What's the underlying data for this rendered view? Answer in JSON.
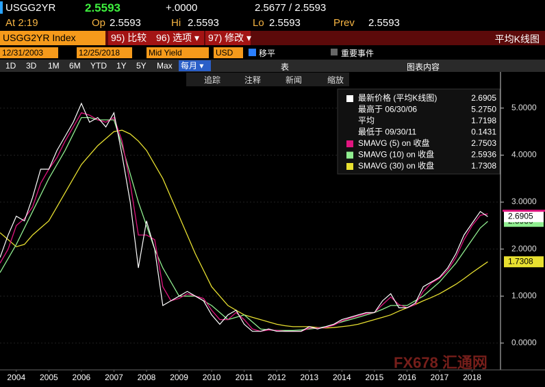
{
  "header": {
    "ticker": "USGG2YR",
    "last": "2.5593",
    "change": "+.0000",
    "bid_ask": "2.5677 / 2.5593",
    "time": "At 2:19",
    "open_label": "Op",
    "open": "2.5593",
    "high_label": "Hi",
    "high": "2.5593",
    "low_label": "Lo",
    "low": "2.5593",
    "prev_label": "Prev",
    "prev": "2.5593"
  },
  "toolbar": {
    "security": "USGG2YR Index",
    "buttons": [
      "95) 比较",
      "96) 选项 ▾",
      "97) 修改 ▾"
    ],
    "chart_style": "平均K线图",
    "start_date": "12/31/2003",
    "end_date": "12/25/2018",
    "field": "Mid Yield",
    "currency": "USD",
    "option": "移平",
    "events": "重要事件",
    "periods": [
      "1D",
      "3D",
      "1M",
      "6M",
      "YTD",
      "1Y",
      "5Y",
      "Max"
    ],
    "frequency": "每月 ▾",
    "table": "表",
    "chart_content": "图表内容",
    "tools": [
      "追踪",
      "注释",
      "新闻",
      "缩放"
    ]
  },
  "watermark": "FX678 汇通网",
  "chart_data": {
    "type": "line",
    "x": [
      2004,
      2004.25,
      2004.5,
      2004.75,
      2005,
      2005.25,
      2005.5,
      2005.75,
      2006,
      2006.25,
      2006.5,
      2006.75,
      2007,
      2007.25,
      2007.5,
      2007.75,
      2008,
      2008.25,
      2008.5,
      2008.75,
      2009,
      2009.25,
      2009.5,
      2009.75,
      2010,
      2010.25,
      2010.5,
      2010.75,
      2011,
      2011.25,
      2011.5,
      2011.75,
      2012,
      2012.25,
      2012.5,
      2012.75,
      2013,
      2013.25,
      2013.5,
      2013.75,
      2014,
      2014.25,
      2014.5,
      2014.75,
      2015,
      2015.25,
      2015.5,
      2015.75,
      2016,
      2016.25,
      2016.5,
      2016.75,
      2017,
      2017.25,
      2017.5,
      2017.75,
      2018,
      2018.25,
      2018.5,
      2018.75,
      2018.98
    ],
    "series": [
      {
        "name": "最新价格 (平均K线图)",
        "color": "#ffffff",
        "values": [
          1.82,
          2.3,
          2.7,
          2.6,
          3.1,
          3.7,
          3.7,
          4.1,
          4.4,
          4.7,
          5.1,
          4.7,
          4.8,
          4.6,
          4.9,
          4.0,
          3.0,
          1.6,
          2.6,
          2.0,
          0.8,
          0.9,
          1.0,
          1.1,
          1.0,
          0.9,
          0.6,
          0.4,
          0.6,
          0.7,
          0.4,
          0.25,
          0.25,
          0.3,
          0.25,
          0.25,
          0.25,
          0.25,
          0.35,
          0.3,
          0.35,
          0.4,
          0.5,
          0.55,
          0.6,
          0.65,
          0.65,
          0.9,
          1.05,
          0.75,
          0.75,
          0.85,
          1.2,
          1.3,
          1.4,
          1.6,
          1.9,
          2.3,
          2.55,
          2.8,
          2.69
        ]
      },
      {
        "name": "SMAVG (5)  on 收盘",
        "color": "#e0157f",
        "values": [
          1.7,
          2.0,
          2.5,
          2.65,
          2.9,
          3.4,
          3.7,
          3.95,
          4.3,
          4.6,
          4.9,
          4.85,
          4.75,
          4.7,
          4.8,
          4.3,
          3.4,
          2.3,
          2.3,
          2.2,
          1.2,
          0.9,
          0.95,
          1.05,
          1.0,
          0.95,
          0.7,
          0.5,
          0.5,
          0.65,
          0.5,
          0.3,
          0.25,
          0.28,
          0.27,
          0.25,
          0.25,
          0.25,
          0.32,
          0.32,
          0.33,
          0.38,
          0.47,
          0.53,
          0.58,
          0.63,
          0.65,
          0.82,
          0.98,
          0.82,
          0.75,
          0.82,
          1.1,
          1.28,
          1.38,
          1.55,
          1.82,
          2.2,
          2.5,
          2.72,
          2.75
        ]
      },
      {
        "name": "SMAVG (10)  on 收盘",
        "color": "#90ee90",
        "values": [
          1.5,
          1.8,
          2.1,
          2.45,
          2.8,
          3.15,
          3.5,
          3.8,
          4.1,
          4.45,
          4.8,
          4.8,
          4.75,
          4.75,
          4.75,
          4.2,
          3.6,
          3.0,
          2.5,
          2.0,
          1.6,
          1.3,
          1.0,
          1.0,
          1.0,
          0.9,
          0.8,
          0.65,
          0.5,
          0.55,
          0.6,
          0.45,
          0.3,
          0.28,
          0.27,
          0.27,
          0.27,
          0.28,
          0.3,
          0.32,
          0.35,
          0.4,
          0.45,
          0.5,
          0.55,
          0.6,
          0.65,
          0.72,
          0.8,
          0.8,
          0.8,
          0.9,
          1.0,
          1.15,
          1.3,
          1.5,
          1.7,
          1.95,
          2.2,
          2.45,
          2.59
        ]
      },
      {
        "name": "SMAVG (30)  on 收盘",
        "color": "#e8e030",
        "values": [
          2.35,
          2.2,
          2.05,
          2.1,
          2.3,
          2.45,
          2.6,
          2.9,
          3.2,
          3.5,
          3.8,
          4.0,
          4.2,
          4.35,
          4.5,
          4.53,
          4.45,
          4.3,
          4.1,
          3.8,
          3.5,
          3.1,
          2.7,
          2.3,
          1.9,
          1.55,
          1.2,
          1.0,
          0.8,
          0.7,
          0.6,
          0.55,
          0.5,
          0.45,
          0.4,
          0.37,
          0.35,
          0.35,
          0.35,
          0.33,
          0.32,
          0.33,
          0.35,
          0.37,
          0.4,
          0.45,
          0.5,
          0.55,
          0.6,
          0.68,
          0.75,
          0.82,
          0.9,
          0.97,
          1.05,
          1.15,
          1.25,
          1.37,
          1.5,
          1.62,
          1.73
        ]
      }
    ],
    "last_labels": [
      "2.6905",
      "2.7503",
      "2.5936",
      "1.7308"
    ],
    "stats": [
      {
        "label": "最高于 06/30/06",
        "value": "5.2750"
      },
      {
        "label": "平均",
        "value": "1.7198"
      },
      {
        "label": "最低于 09/30/11",
        "value": "0.1431"
      }
    ],
    "xlim": [
      2004,
      2019.35
    ],
    "xticks": [
      {
        "value": 2004.5,
        "label": "2004"
      },
      {
        "value": 2005.5,
        "label": "2005"
      },
      {
        "value": 2006.5,
        "label": "2006"
      },
      {
        "value": 2007.5,
        "label": "2007"
      },
      {
        "value": 2008.5,
        "label": "2008"
      },
      {
        "value": 2009.5,
        "label": "2009"
      },
      {
        "value": 2010.5,
        "label": "2010"
      },
      {
        "value": 2011.5,
        "label": "2011"
      },
      {
        "value": 2012.5,
        "label": "2012"
      },
      {
        "value": 2013.5,
        "label": "2013"
      },
      {
        "value": 2014.5,
        "label": "2014"
      },
      {
        "value": 2015.5,
        "label": "2015"
      },
      {
        "value": 2016.5,
        "label": "2016"
      },
      {
        "value": 2017.5,
        "label": "2017"
      },
      {
        "value": 2018.5,
        "label": "2018"
      }
    ],
    "ylim": [
      -0.57,
      5.77
    ],
    "yticks": [
      {
        "value": 0,
        "label": "0.0000"
      },
      {
        "value": 1,
        "label": "1.0000"
      },
      {
        "value": 2,
        "label": "2.0000"
      },
      {
        "value": 3,
        "label": "3.0000"
      },
      {
        "value": 4,
        "label": "4.0000"
      },
      {
        "value": 5,
        "label": "5.0000"
      }
    ]
  }
}
